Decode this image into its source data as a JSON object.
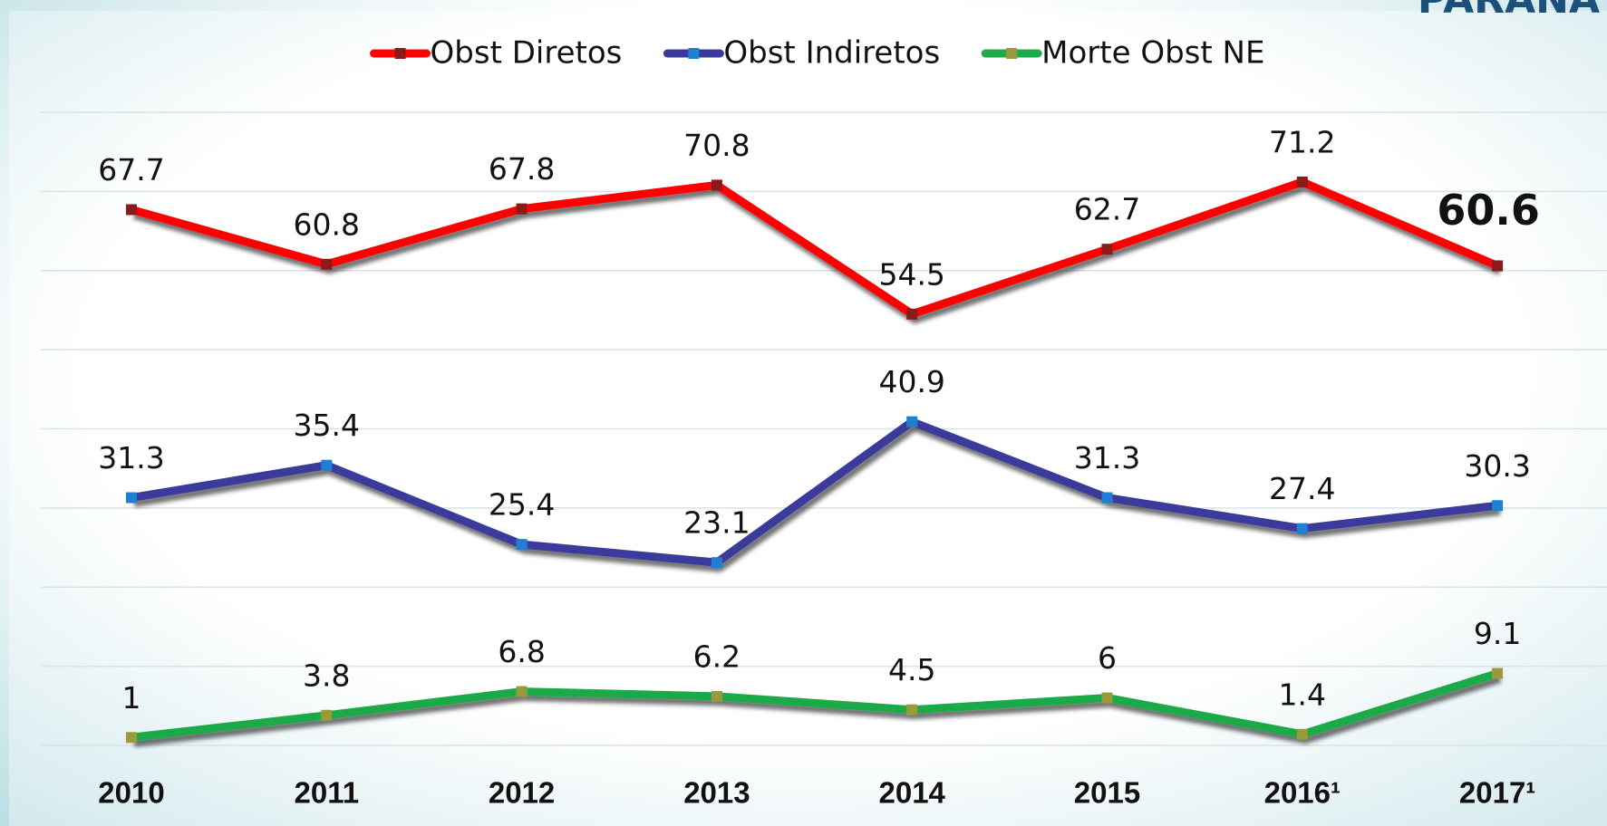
{
  "logo": "PARANÁ",
  "chart_data": {
    "type": "line",
    "categories": [
      "2010",
      "2011",
      "2012",
      "2013",
      "2014",
      "2015",
      "2016¹",
      "2017¹"
    ],
    "series": [
      {
        "name": "Obst Diretos",
        "color": "#ff0000",
        "marker_color": "#8b1a1a",
        "values": [
          67.7,
          60.8,
          67.8,
          70.8,
          54.5,
          62.7,
          71.2,
          60.6
        ]
      },
      {
        "name": "Obst Indiretos",
        "color": "#3a3a9c",
        "marker_color": "#1f7fd0",
        "values": [
          31.3,
          35.4,
          25.4,
          23.1,
          40.9,
          31.3,
          27.4,
          30.3
        ]
      },
      {
        "name": "Morte Obst NE",
        "color": "#1faa4a",
        "marker_color": "#9a9a3c",
        "values": [
          1.0,
          3.8,
          6.8,
          6.2,
          4.5,
          6.0,
          1.4,
          9.1
        ]
      }
    ],
    "ylim": [
      0,
      80
    ],
    "yticks": [
      0,
      10,
      20,
      30,
      40,
      50,
      60,
      70,
      80
    ],
    "grid": true,
    "legend": "top"
  }
}
